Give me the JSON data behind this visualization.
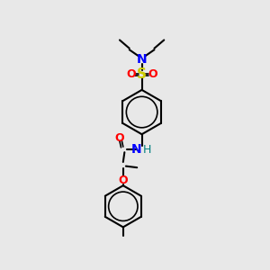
{
  "bg_color": "#e8e8e8",
  "bond_color": "#000000",
  "bond_lw": 1.5,
  "atom_colors": {
    "N": "#0000ff",
    "O": "#ff0000",
    "S": "#cccc00",
    "NH": "#008080",
    "C": "#000000"
  },
  "font_size": 9,
  "font_size_small": 8
}
